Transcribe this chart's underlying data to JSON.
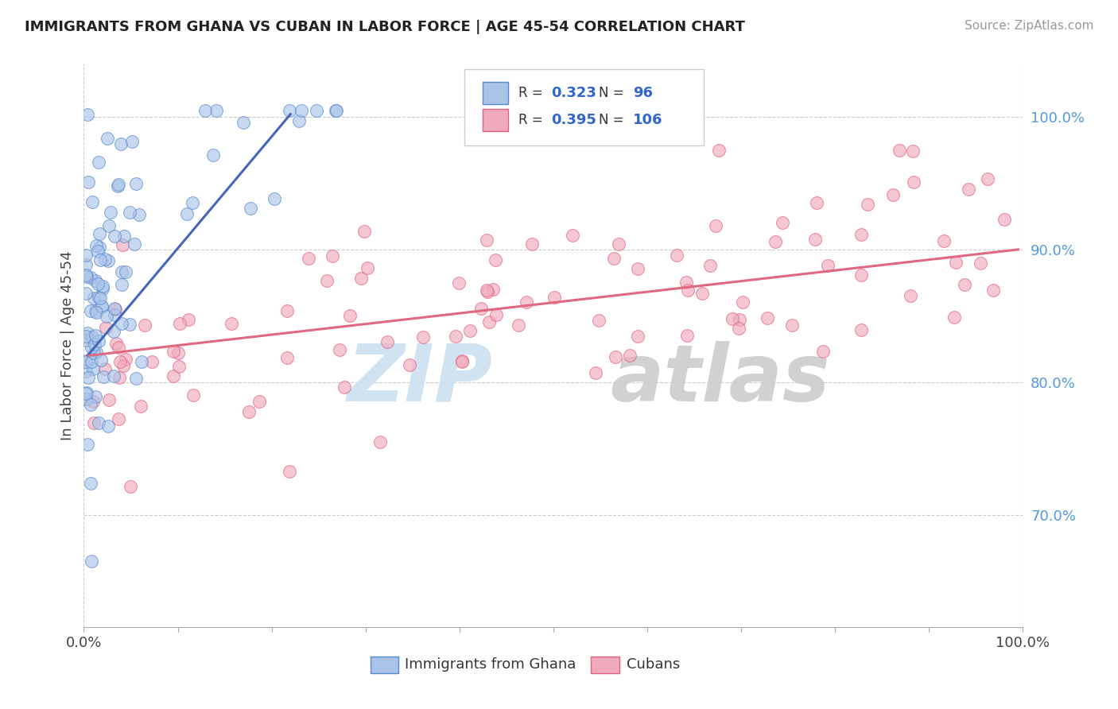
{
  "title": "IMMIGRANTS FROM GHANA VS CUBAN IN LABOR FORCE | AGE 45-54 CORRELATION CHART",
  "source": "Source: ZipAtlas.com",
  "ylabel": "In Labor Force | Age 45-54",
  "xlim": [
    0.0,
    1.0
  ],
  "ylim": [
    0.615,
    1.04
  ],
  "ghana_color": "#aac4e8",
  "ghana_edge_color": "#5588cc",
  "cuban_color": "#f0aabc",
  "cuban_edge_color": "#e06080",
  "ghana_line_color": "#4466bb",
  "cuban_line_color": "#e06880",
  "ghana_R": "0.323",
  "ghana_N": "96",
  "cuban_R": "0.395",
  "cuban_N": "106",
  "legend_label_ghana": "Immigrants from Ghana",
  "legend_label_cuban": "Cubans",
  "right_yticks": [
    0.7,
    0.8,
    0.9,
    1.0
  ],
  "right_yticklabels": [
    "70.0%",
    "80.0%",
    "90.0%",
    "100.0%"
  ],
  "right_tick_color": "#5599dd",
  "grid_color": "#cccccc",
  "watermark_zip_color": "#cce0f0",
  "watermark_atlas_color": "#cccccc"
}
